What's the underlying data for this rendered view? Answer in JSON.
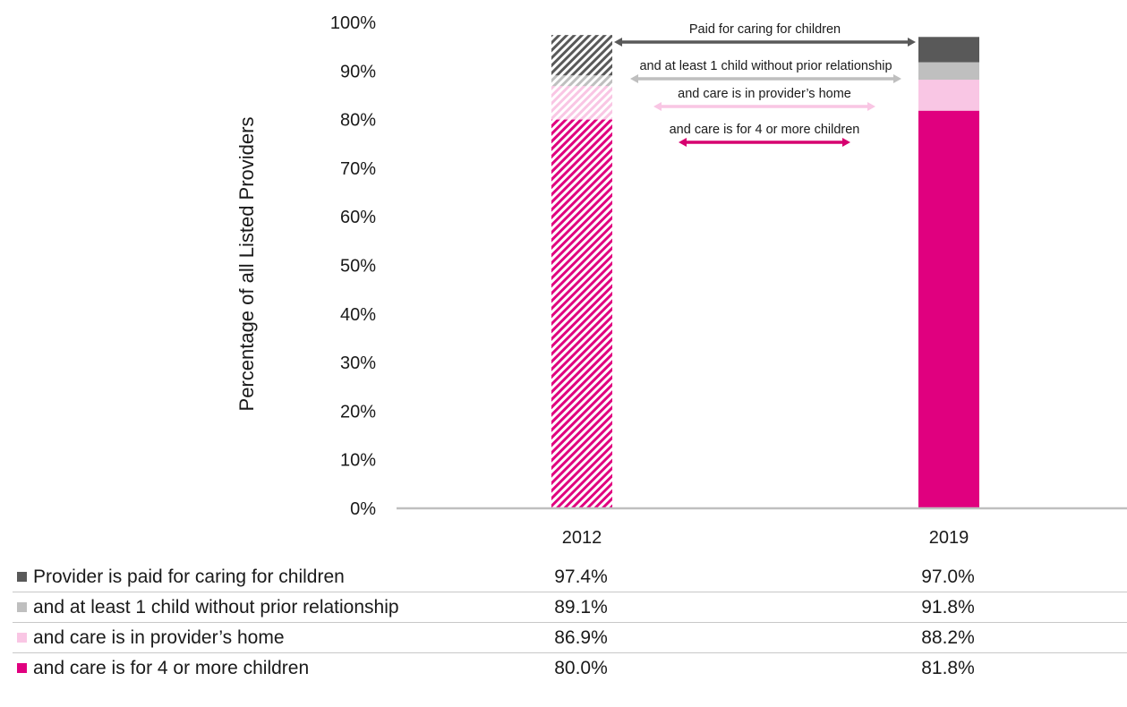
{
  "chart_data": {
    "type": "bar",
    "stacked": false,
    "overlapping_cumulative": true,
    "categories": [
      "2012",
      "2019"
    ],
    "ylabel": "Percentage of all Listed Providers",
    "ylim": [
      0,
      100
    ],
    "yticks": [
      "0%",
      "10%",
      "20%",
      "30%",
      "40%",
      "50%",
      "60%",
      "70%",
      "80%",
      "90%",
      "100%"
    ],
    "grid": false,
    "series": [
      {
        "name": "Provider is paid for caring for children",
        "values": [
          97.4,
          97.0
        ],
        "color": "#595959"
      },
      {
        "name": "and at least 1 child without prior relationship",
        "values": [
          89.1,
          91.8
        ],
        "color": "#bfbfbf"
      },
      {
        "name": "and care is in provider’s home",
        "values": [
          86.9,
          88.2
        ],
        "color": "#f9c6e4"
      },
      {
        "name": "and care is for 4 or more children",
        "values": [
          80.0,
          81.8
        ],
        "color": "#e0007f"
      }
    ],
    "patterns": {
      "2012": "diagonal-hatch",
      "2019": "solid"
    },
    "annotations": [
      {
        "text": "Paid for caring for children",
        "color": "#595959"
      },
      {
        "text": "and at least 1 child without prior relationship",
        "color": "#bfbfbf"
      },
      {
        "text": "and care is in provider’s home",
        "color": "#f9c6e4"
      },
      {
        "text": "and care is for 4 or more children",
        "color": "#d6006f"
      }
    ]
  },
  "table": {
    "rows": [
      {
        "label": "Provider is paid for caring for children",
        "v2012": "97.4%",
        "v2019": "97.0%",
        "color": "#595959"
      },
      {
        "label": "and at least 1 child without prior relationship",
        "v2012": "89.1%",
        "v2019": "91.8%",
        "color": "#bfbfbf"
      },
      {
        "label": "and care is in provider’s home",
        "v2012": "86.9%",
        "v2019": "88.2%",
        "color": "#f9c6e4"
      },
      {
        "label": "and care is for 4 or more children",
        "v2012": "80.0%",
        "v2019": "81.8%",
        "color": "#e0007f"
      }
    ]
  }
}
